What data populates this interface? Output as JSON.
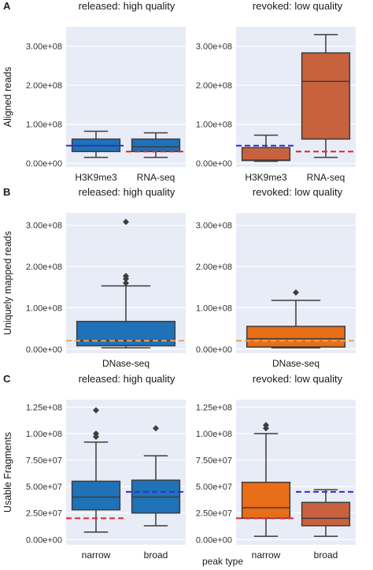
{
  "figure": {
    "xlabel_bottom": "peak type",
    "colors": {
      "panel_bg": "#e8ecf6",
      "grid": "#ffffff",
      "blue_box": "#1f72b8",
      "orange_box": "#ea6d17",
      "red_box": "#c8613e",
      "median_line": "#3d3d3d",
      "blue_dash": "#2f2fd0",
      "red_dash": "#e0242f",
      "orange_dash": "#f0a050"
    }
  },
  "chart_data": [
    {
      "panel": "A",
      "title": "released: high quality",
      "type": "box",
      "ylabel": "Aligned reads",
      "yticks": [
        0,
        100000000,
        200000000,
        300000000
      ],
      "ytick_labels": [
        "0.00e+00",
        "1.00e+08",
        "2.00e+08",
        "3.00e+08"
      ],
      "ylim": [
        -10000000,
        350000000
      ],
      "categories": [
        "H3K9me3",
        "RNA-seq"
      ],
      "boxes": [
        {
          "name": "H3K9me3",
          "color": "#1f72b8",
          "whislo": 15000000,
          "q1": 30000000,
          "median": 45000000,
          "q3": 62000000,
          "whishi": 82000000,
          "fliers": []
        },
        {
          "name": "RNA-seq",
          "color": "#1f72b8",
          "whislo": 15000000,
          "q1": 30000000,
          "median": 42000000,
          "q3": 62000000,
          "whishi": 78000000,
          "fliers": []
        }
      ],
      "thresholds": [
        {
          "category": "H3K9me3",
          "value": 45000000,
          "color": "#2f2fd0"
        },
        {
          "category": "RNA-seq",
          "value": 30000000,
          "color": "#e0242f"
        }
      ]
    },
    {
      "panel": "",
      "title": "revoked: low quality",
      "type": "box",
      "ylabel": "",
      "yticks": [
        0,
        100000000,
        200000000,
        300000000
      ],
      "ytick_labels": [
        "0.00e+00",
        "1.00e+08",
        "2.00e+08",
        "3.00e+08"
      ],
      "ylim": [
        -10000000,
        350000000
      ],
      "categories": [
        "H3K9me3",
        "RNA-seq"
      ],
      "boxes": [
        {
          "name": "H3K9me3",
          "color": "#c8613e",
          "whislo": 5000000,
          "q1": 7000000,
          "median": 8000000,
          "q3": 40000000,
          "whishi": 72000000,
          "fliers": []
        },
        {
          "name": "RNA-seq",
          "color": "#c8613e",
          "whislo": 15000000,
          "q1": 62000000,
          "median": 210000000,
          "q3": 283000000,
          "whishi": 330000000,
          "fliers": []
        }
      ],
      "thresholds": [
        {
          "category": "H3K9me3",
          "value": 45000000,
          "color": "#2f2fd0"
        },
        {
          "category": "RNA-seq",
          "value": 30000000,
          "color": "#e0242f"
        }
      ]
    },
    {
      "panel": "B",
      "title": "released: high quality",
      "type": "box",
      "ylabel": "Uniquely mapped reads",
      "yticks": [
        0,
        100000000,
        200000000,
        300000000
      ],
      "ytick_labels": [
        "0.00e+00",
        "1.00e+08",
        "2.00e+08",
        "3.00e+08"
      ],
      "ylim": [
        -10000000,
        330000000
      ],
      "categories": [
        "DNase-seq"
      ],
      "boxes": [
        {
          "name": "DNase-seq",
          "color": "#1f72b8",
          "whislo": 3000000,
          "q1": 8000000,
          "median": 20000000,
          "q3": 67000000,
          "whishi": 153000000,
          "fliers": [
            160000000,
            170000000,
            177000000,
            308000000
          ]
        }
      ],
      "thresholds": [
        {
          "category": "DNase-seq",
          "value": 20000000,
          "color": "#f0a050"
        }
      ]
    },
    {
      "panel": "",
      "title": "revoked: low quality",
      "type": "box",
      "ylabel": "",
      "yticks": [
        0,
        100000000,
        200000000,
        300000000
      ],
      "ytick_labels": [
        "0.00e+00",
        "1.00e+08",
        "2.00e+08",
        "3.00e+08"
      ],
      "ylim": [
        -10000000,
        330000000
      ],
      "categories": [
        "DNase-seq"
      ],
      "boxes": [
        {
          "name": "DNase-seq",
          "color": "#ea6d17",
          "whislo": 3000000,
          "q1": 5000000,
          "median": 25000000,
          "q3": 55000000,
          "whishi": 118000000,
          "fliers": [
            137000000
          ]
        }
      ],
      "thresholds": [
        {
          "category": "DNase-seq",
          "value": 20000000,
          "color": "#f0a050"
        }
      ]
    },
    {
      "panel": "C",
      "title": "released: high quality",
      "type": "box",
      "ylabel": "Usable Fragments",
      "yticks": [
        0,
        25000000,
        50000000,
        75000000,
        100000000,
        125000000
      ],
      "ytick_labels": [
        "0.00e+00",
        "2.50e+07",
        "5.00e+07",
        "7.50e+07",
        "1.00e+08",
        "1.25e+08"
      ],
      "ylim": [
        -5000000,
        132000000
      ],
      "categories": [
        "narrow",
        "broad"
      ],
      "boxes": [
        {
          "name": "narrow",
          "color": "#1f72b8",
          "whislo": 7000000,
          "q1": 28000000,
          "median": 40000000,
          "q3": 55000000,
          "whishi": 92000000,
          "fliers": [
            97000000,
            100000000,
            122000000
          ]
        },
        {
          "name": "broad",
          "color": "#1f72b8",
          "whislo": 13000000,
          "q1": 25000000,
          "median": 40000000,
          "q3": 56000000,
          "whishi": 79000000,
          "fliers": [
            105000000
          ]
        }
      ],
      "thresholds": [
        {
          "category": "narrow",
          "value": 20000000,
          "color": "#e0242f"
        },
        {
          "category": "broad",
          "value": 45000000,
          "color": "#2f2fd0"
        }
      ]
    },
    {
      "panel": "",
      "title": "revoked: low quality",
      "type": "box",
      "ylabel": "",
      "yticks": [
        0,
        25000000,
        50000000,
        75000000,
        100000000,
        125000000
      ],
      "ytick_labels": [
        "0.00e+00",
        "2.50e+07",
        "5.00e+07",
        "7.50e+07",
        "1.00e+08",
        "1.25e+08"
      ],
      "ylim": [
        -5000000,
        132000000
      ],
      "categories": [
        "narrow",
        "broad"
      ],
      "boxes": [
        {
          "name": "narrow",
          "color": "#ea6d17",
          "whislo": 3000000,
          "q1": 20000000,
          "median": 30000000,
          "q3": 54000000,
          "whishi": 100000000,
          "fliers": [
            105000000,
            108000000
          ]
        },
        {
          "name": "broad",
          "color": "#c8613e",
          "whislo": 3000000,
          "q1": 13000000,
          "median": 20000000,
          "q3": 35000000,
          "whishi": 47000000,
          "fliers": []
        }
      ],
      "thresholds": [
        {
          "category": "narrow",
          "value": 20000000,
          "color": "#e0242f"
        },
        {
          "category": "broad",
          "value": 45000000,
          "color": "#2f2fd0"
        }
      ]
    }
  ]
}
